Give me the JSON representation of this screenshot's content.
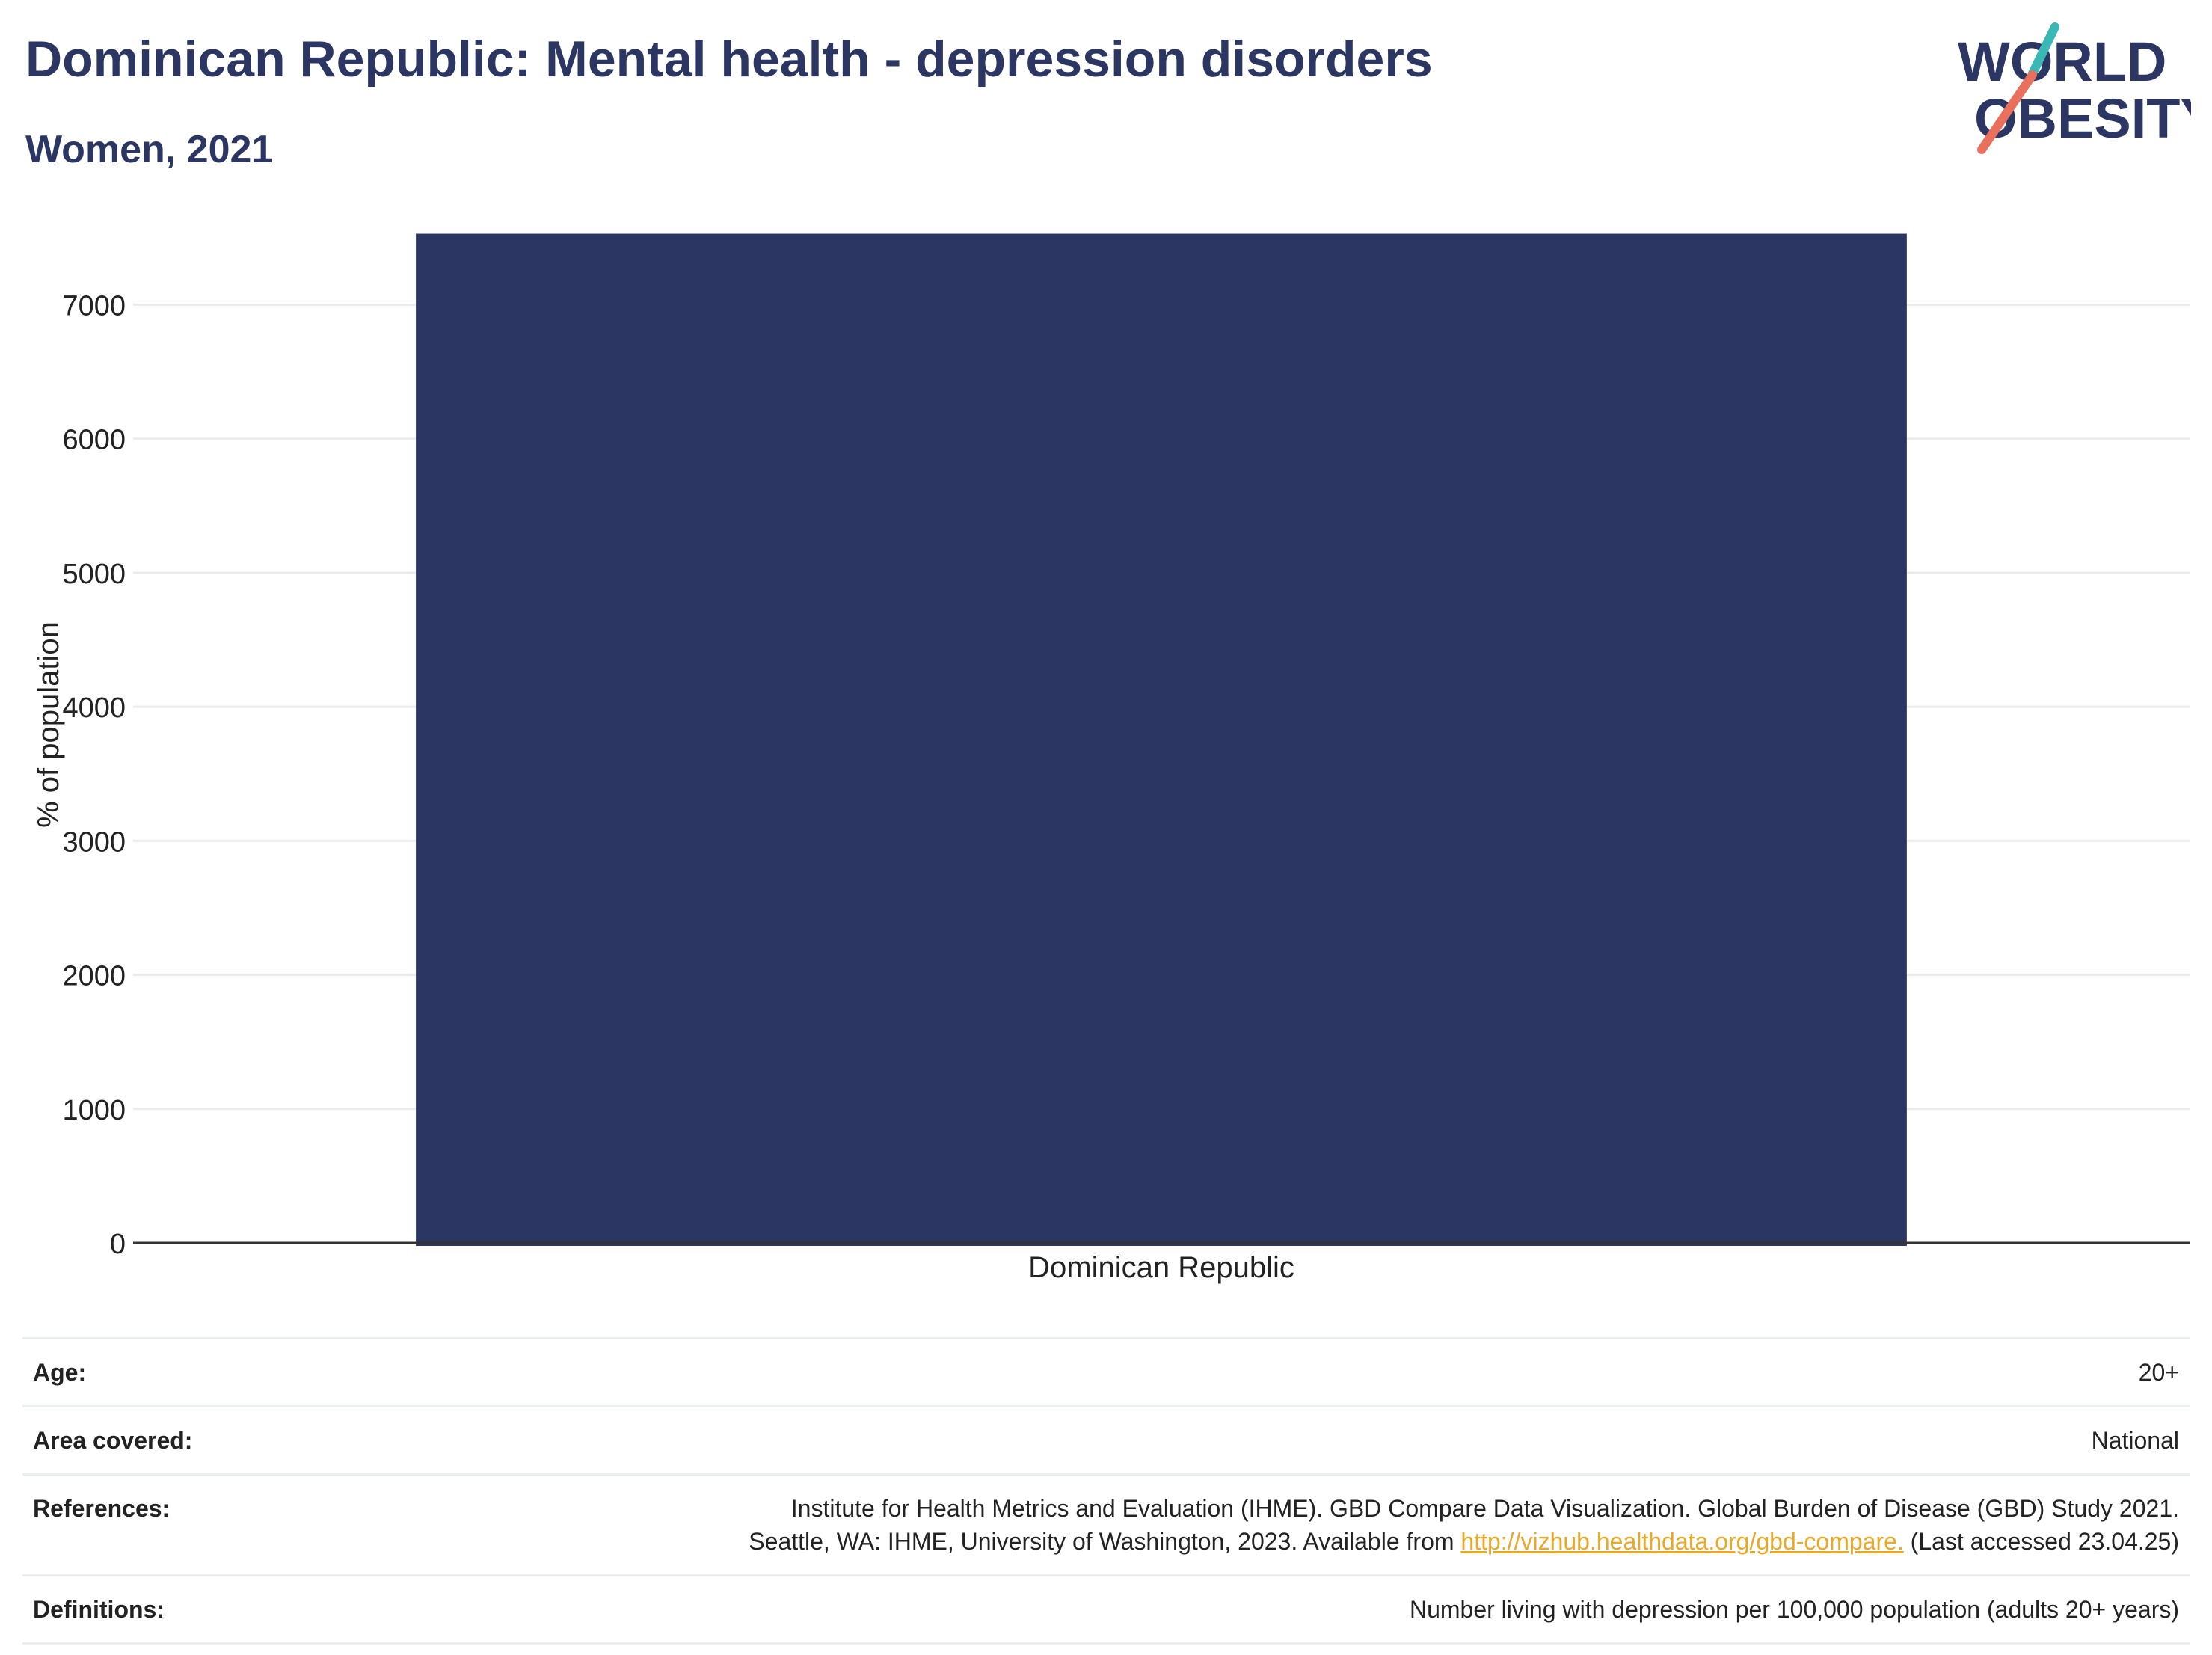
{
  "header": {
    "title": "Dominican Republic: Mental health - depression disorders",
    "subtitle": "Women, 2021"
  },
  "logo": {
    "line1": "WORLD",
    "line2": "OBESITY",
    "colors": {
      "navy": "#2b3663",
      "teal": "#3ab8b5",
      "coral": "#e8705c"
    }
  },
  "chart_data": {
    "type": "bar",
    "categories": [
      "Dominican Republic"
    ],
    "values": [
      7530
    ],
    "ylabel": "% of population",
    "xlabel": "",
    "ylim": [
      0,
      7600
    ],
    "yticks": [
      0,
      1000,
      2000,
      3000,
      4000,
      5000,
      6000,
      7000
    ],
    "grid": true,
    "bar_color": "#2b3663"
  },
  "meta": {
    "rows": [
      {
        "label": "Age:",
        "value": "20+"
      },
      {
        "label": "Area covered:",
        "value": "National"
      },
      {
        "label": "References:",
        "line1": "Institute for Health Metrics and Evaluation (IHME). GBD Compare Data Visualization. Global Burden of Disease (GBD) Study 2021.",
        "line2_pre": "Seattle, WA: IHME, University of Washington, 2023. Available from ",
        "link": "http://vizhub.healthdata.org/gbd-compare.",
        "line2_post": " (Last accessed 23.04.25)"
      },
      {
        "label": "Definitions:",
        "value": "Number living with depression per 100,000 population (adults 20+ years)"
      }
    ]
  }
}
